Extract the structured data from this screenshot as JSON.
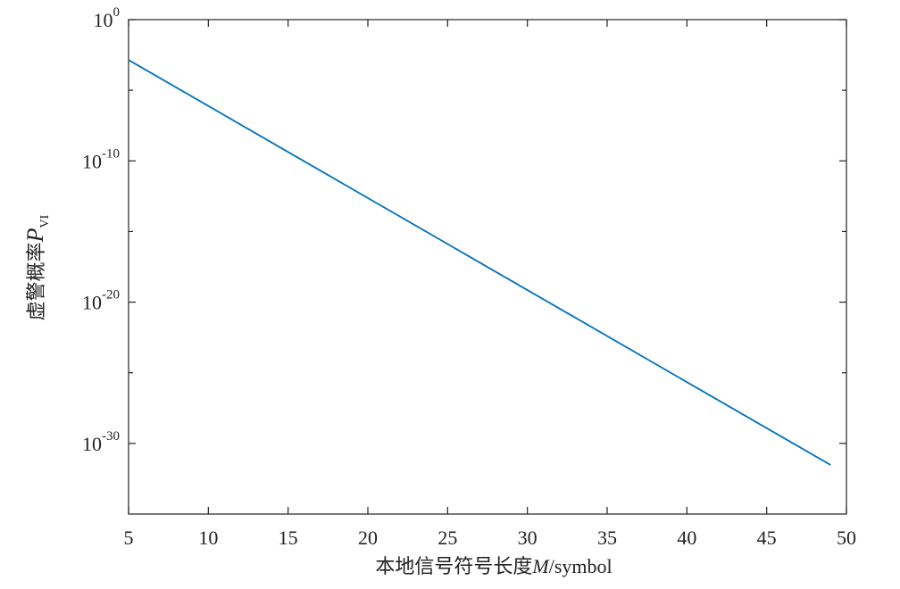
{
  "chart_data": {
    "type": "line",
    "log_y": true,
    "x_label": {
      "text": "本地信号符号长度",
      "variable": "M",
      "unit": "/symbol"
    },
    "y_label": {
      "text": "虚警概率",
      "variable": "P",
      "subscript": "VI"
    },
    "x": [
      5,
      49
    ],
    "series": [
      {
        "color": "#0072bd",
        "values": [
          0.0014,
          3e-32
        ]
      }
    ],
    "xlim": [
      5,
      50
    ],
    "xticks": [
      5,
      10,
      15,
      20,
      25,
      30,
      35,
      40,
      45,
      50
    ],
    "ylim": [
      1e-35,
      1
    ],
    "yticks": [
      {
        "value": 1,
        "label": "10",
        "power": "0"
      },
      {
        "value": 1e-10,
        "label": "10",
        "power": "-10"
      },
      {
        "value": 1e-20,
        "label": "10",
        "power": "-20"
      },
      {
        "value": 1e-30,
        "label": "10",
        "power": "-30"
      }
    ],
    "yminorticks": [
      1e-05,
      1e-15,
      1e-25
    ],
    "grid": false
  }
}
